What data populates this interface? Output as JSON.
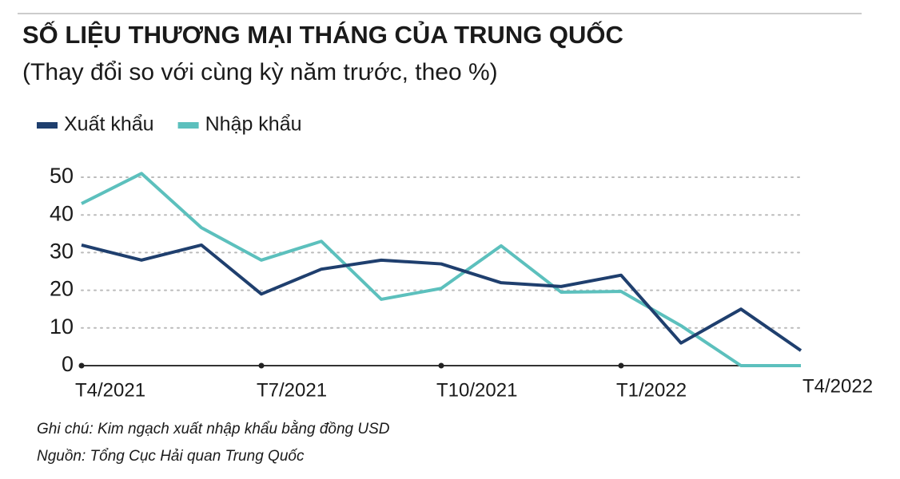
{
  "chart_data": {
    "type": "line",
    "title": "SỐ LIỆU THƯƠNG MẠI THÁNG CỦA TRUNG QUỐC",
    "subtitle": "(Thay đổi so với cùng kỳ năm trước, theo %)",
    "categories": [
      "T4/2021",
      null,
      null,
      "T7/2021",
      null,
      null,
      "T10/2021",
      null,
      null,
      "T1/2022",
      null,
      null,
      "T4/2022"
    ],
    "series": [
      {
        "name": "Xuất khẩu",
        "color": "#1f3f6e",
        "values": [
          32,
          28,
          32,
          19,
          25.6,
          28,
          27,
          22,
          21,
          24,
          6,
          15,
          4
        ]
      },
      {
        "name": "Nhập khẩu",
        "color": "#5cc0bd",
        "values": [
          43,
          51,
          36.6,
          28,
          33,
          17.6,
          20.5,
          31.8,
          19.5,
          19.7,
          10.6,
          0,
          0
        ]
      }
    ],
    "ylim": [
      0,
      52
    ],
    "yticks": [
      0,
      10,
      20,
      30,
      40,
      50
    ],
    "grid": true,
    "notes": [
      "Ghi chú: Kim ngạch xuất nhập khẩu bằng đồng USD",
      "Nguồn: Tổng Cục Hải quan Trung Quốc"
    ]
  }
}
